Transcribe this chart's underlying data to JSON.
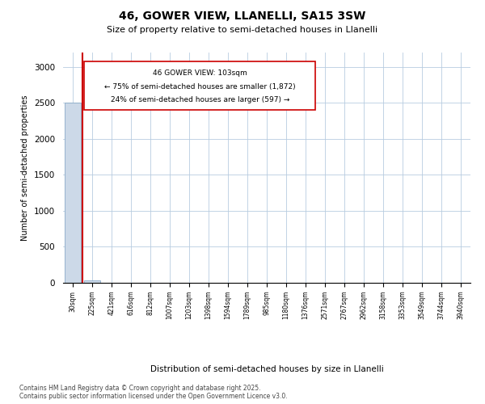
{
  "title": "46, GOWER VIEW, LLANELLI, SA15 3SW",
  "subtitle": "Size of property relative to semi-detached houses in Llanelli",
  "xlabel": "Distribution of semi-detached houses by size in Llanelli",
  "ylabel": "Number of semi-detached properties",
  "footer": "Contains HM Land Registry data © Crown copyright and database right 2025.\nContains public sector information licensed under the Open Government Licence v3.0.",
  "annotation_lines": [
    "46 GOWER VIEW: 103sqm",
    "← 75% of semi-detached houses are smaller (1,872)",
    "24% of semi-detached houses are larger (597) →"
  ],
  "bar_color": "#ccd9e8",
  "bar_edge_color": "#8aaac8",
  "vline_color": "#cc0000",
  "annotation_box_color": "#cc0000",
  "background_color": "#ffffff",
  "grid_color": "#b8cce0",
  "categories": [
    "30sqm",
    "225sqm",
    "421sqm",
    "616sqm",
    "812sqm",
    "1007sqm",
    "1203sqm",
    "1398sqm",
    "1594sqm",
    "1789sqm",
    "985sqm",
    "1180sqm",
    "1376sqm",
    "2571sqm",
    "2767sqm",
    "2962sqm",
    "3158sqm",
    "3353sqm",
    "3549sqm",
    "3744sqm",
    "3940sqm"
  ],
  "values": [
    2500,
    30,
    0,
    0,
    0,
    0,
    0,
    0,
    0,
    0,
    0,
    0,
    0,
    0,
    0,
    0,
    0,
    0,
    0,
    0,
    0
  ],
  "ylim": [
    0,
    3200
  ],
  "yticks": [
    0,
    500,
    1000,
    1500,
    2000,
    2500,
    3000
  ],
  "vline_x_idx": 0.5,
  "num_bins": 21
}
